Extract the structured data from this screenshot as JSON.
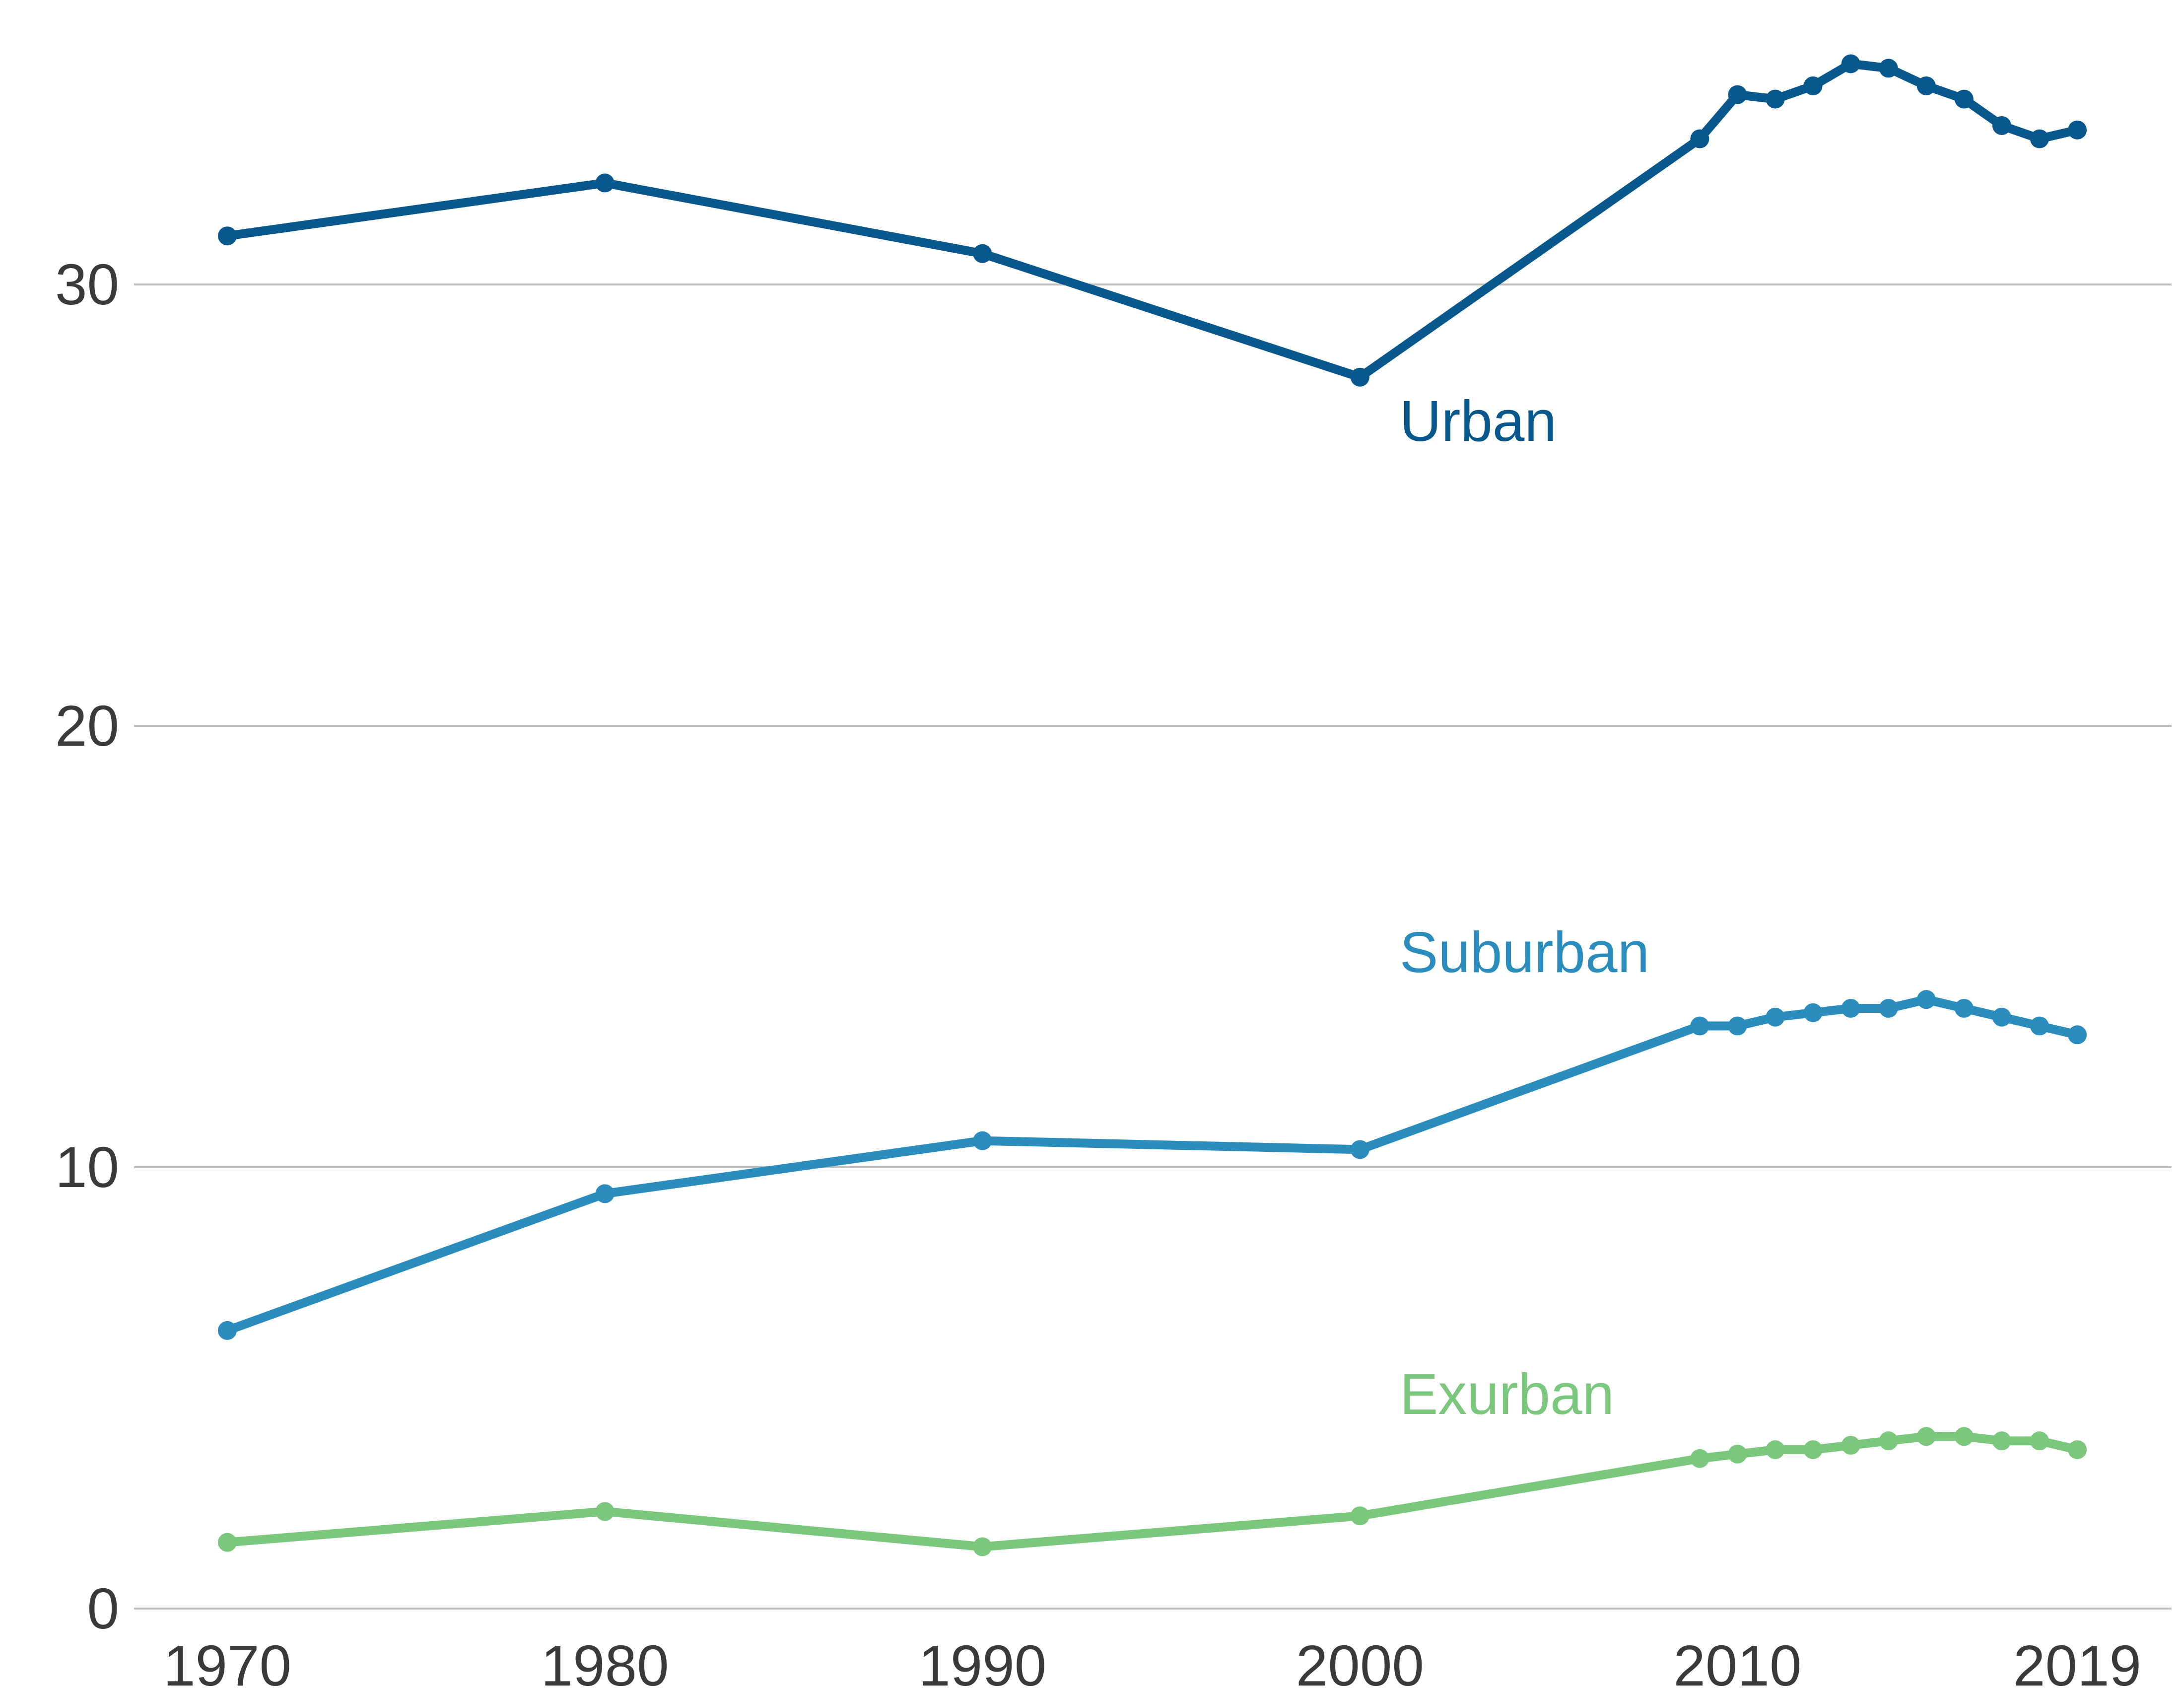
{
  "chart_data": {
    "type": "line",
    "title": "",
    "xlabel": "",
    "ylabel": "",
    "xlim": [
      1970,
      2019
    ],
    "ylim": [
      0,
      35
    ],
    "grid": true,
    "legend": "direct labels",
    "x_ticks": [
      1970,
      1980,
      1990,
      2000,
      2010,
      2019
    ],
    "y_ticks": [
      0,
      10,
      20,
      30
    ],
    "x": [
      1970,
      1980,
      1990,
      2000,
      2009,
      2010,
      2011,
      2012,
      2013,
      2014,
      2015,
      2016,
      2017,
      2018,
      2019
    ],
    "series": [
      {
        "name": "Urban",
        "color": "#08588e",
        "values": [
          31.1,
          32.3,
          30.7,
          27.9,
          33.3,
          34.3,
          34.2,
          34.5,
          35.0,
          34.9,
          34.5,
          34.2,
          33.6,
          33.3,
          33.5
        ]
      },
      {
        "name": "Suburban",
        "color": "#2b8cbe",
        "values": [
          6.3,
          9.4,
          10.6,
          10.4,
          13.2,
          13.2,
          13.4,
          13.5,
          13.6,
          13.6,
          13.8,
          13.6,
          13.4,
          13.2,
          13.0
        ]
      },
      {
        "name": "Exurban",
        "color": "#7bc77e",
        "values": [
          1.5,
          2.2,
          1.4,
          2.1,
          3.4,
          3.5,
          3.6,
          3.6,
          3.7,
          3.8,
          3.9,
          3.9,
          3.8,
          3.8,
          3.6
        ]
      }
    ]
  }
}
